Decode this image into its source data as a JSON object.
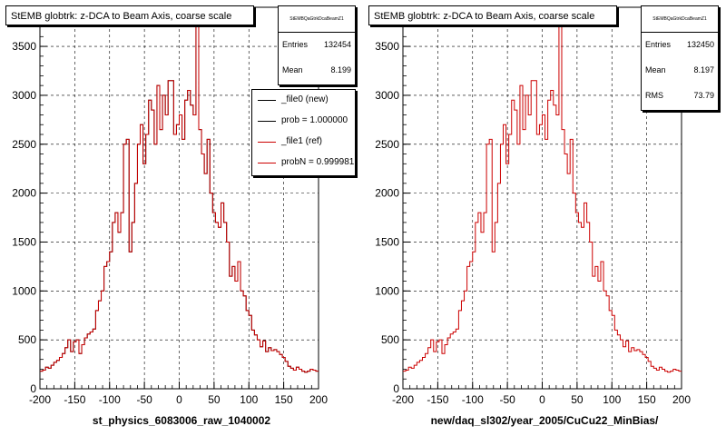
{
  "colors": {
    "new": "#000000",
    "ref": "#cc0000",
    "grid": "#000000"
  },
  "panels": [
    {
      "title": "StEMB globtrk: z-DCA to Beam Axis, coarse scale",
      "stats": {
        "name": "StEMBQaGtrkDcaBeamZ1",
        "rows": [
          {
            "key": "Entries",
            "value": "132454"
          },
          {
            "key": "Mean",
            "value": "8.199"
          }
        ]
      },
      "legend": [
        {
          "label": "_file0 (new)",
          "color": "#000000"
        },
        {
          "label": "prob = 1.000000",
          "color": "#000000"
        },
        {
          "label": "_file1 (ref)",
          "color": "#cc0000"
        },
        {
          "label": "probN = 0.999981",
          "color": "#cc0000"
        }
      ],
      "xlabel": "st_physics_6083006_raw_1040002"
    },
    {
      "title": "StEMB globtrk: z-DCA to Beam Axis, coarse scale",
      "stats": {
        "name": "StEMBQaGtrkDcaBeamZ1",
        "rows": [
          {
            "key": "Entries",
            "value": "132450"
          },
          {
            "key": "Mean",
            "value": "8.197"
          },
          {
            "key": "RMS",
            "value": "73.79"
          }
        ]
      },
      "legend": [],
      "xlabel": "new/daq_sl302/year_2005/CuCu22_MinBias/"
    }
  ],
  "chart_data": [
    {
      "type": "histogram",
      "title": "StEMB globtrk: z-DCA to Beam Axis, coarse scale",
      "xlabel": "st_physics_6083006_raw_1040002",
      "ylabel": "",
      "xlim": [
        -200,
        200
      ],
      "ylim": [
        0,
        3900
      ],
      "grid": true,
      "legend_position": "top-right",
      "xticks": [
        -200,
        -150,
        -100,
        -50,
        0,
        50,
        100,
        150,
        200
      ],
      "yticks": [
        0,
        500,
        1000,
        1500,
        2000,
        2500,
        3000,
        3500
      ],
      "bin_width": 4,
      "series": [
        {
          "name": "_file0 (new)",
          "color": "#000000"
        },
        {
          "name": "_file1 (ref)",
          "color": "#cc0000"
        }
      ],
      "bin_values": [
        180,
        190,
        220,
        210,
        240,
        270,
        290,
        320,
        360,
        420,
        500,
        380,
        480,
        500,
        360,
        450,
        520,
        560,
        580,
        610,
        800,
        900,
        1000,
        1250,
        1300,
        1400,
        1700,
        1800,
        1600,
        1800,
        2500,
        2550,
        1400,
        1700,
        2100,
        2500,
        2700,
        2300,
        2600,
        2950,
        2850,
        2500,
        3100,
        2650,
        3000,
        2800,
        3150,
        3150,
        2600,
        2700,
        2800,
        2550,
        2950,
        3050,
        2900,
        2800,
        3750,
        2650,
        2400,
        2200,
        2550,
        2000,
        1800,
        1700,
        1650,
        1900,
        1700,
        1500,
        1150,
        1250,
        1100,
        1300,
        1000,
        950,
        800,
        750,
        600,
        550,
        500,
        430,
        490,
        380,
        420,
        390,
        400,
        380,
        350,
        320,
        280,
        230,
        210,
        190,
        220,
        200,
        180,
        170,
        180,
        200,
        190,
        180
      ]
    },
    {
      "type": "histogram",
      "title": "StEMB globtrk: z-DCA to Beam Axis, coarse scale",
      "xlabel": "new/daq_sl302/year_2005/CuCu22_MinBias/",
      "ylabel": "",
      "xlim": [
        -200,
        200
      ],
      "ylim": [
        0,
        3900
      ],
      "grid": true,
      "xticks": [
        -200,
        -150,
        -100,
        -50,
        0,
        50,
        100,
        150,
        200
      ],
      "yticks": [
        0,
        500,
        1000,
        1500,
        2000,
        2500,
        3000,
        3500
      ],
      "bin_width": 4,
      "series": [
        {
          "name": "",
          "color": "#cc0000"
        }
      ],
      "bin_values": [
        180,
        190,
        220,
        210,
        240,
        270,
        290,
        320,
        360,
        420,
        500,
        380,
        480,
        500,
        360,
        450,
        520,
        560,
        580,
        610,
        800,
        900,
        1000,
        1250,
        1300,
        1400,
        1700,
        1800,
        1600,
        1800,
        2500,
        2550,
        1400,
        1700,
        2100,
        2500,
        2700,
        2300,
        2600,
        2950,
        2850,
        2500,
        3100,
        2650,
        3000,
        2800,
        3150,
        3150,
        2600,
        2700,
        2800,
        2550,
        2950,
        3050,
        2900,
        2800,
        3750,
        2650,
        2400,
        2200,
        2550,
        2000,
        1800,
        1700,
        1650,
        1900,
        1700,
        1500,
        1150,
        1250,
        1100,
        1300,
        1000,
        950,
        800,
        750,
        600,
        550,
        500,
        430,
        490,
        380,
        420,
        390,
        400,
        380,
        350,
        320,
        280,
        230,
        210,
        190,
        220,
        200,
        180,
        170,
        180,
        200,
        190,
        180
      ]
    }
  ]
}
